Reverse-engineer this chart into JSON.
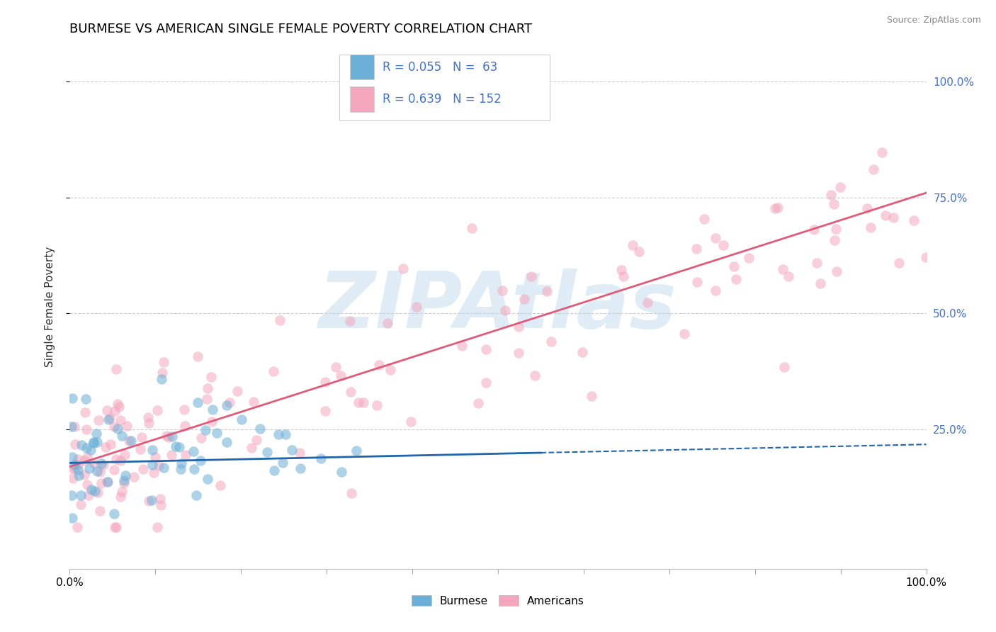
{
  "title": "BURMESE VS AMERICAN SINGLE FEMALE POVERTY CORRELATION CHART",
  "source_text": "Source: ZipAtlas.com",
  "ylabel": "Single Female Poverty",
  "legend_label1": "Burmese",
  "legend_label2": "Americans",
  "R1": 0.055,
  "N1": 63,
  "R2": 0.639,
  "N2": 152,
  "blue_color": "#6baed6",
  "pink_color": "#f4a6be",
  "blue_line_color": "#2166ac",
  "pink_line_color": "#e05a7a",
  "title_color": "#000000",
  "source_color": "#888888",
  "watermark_text": "ZIPAtlas",
  "watermark_color": "#b8d4ea",
  "background_color": "#ffffff",
  "grid_color": "#cccccc",
  "right_tick_color": "#4472c4",
  "xlim": [
    0.0,
    1.0
  ],
  "ylim": [
    -0.05,
    1.08
  ],
  "y_ticks": [
    0.25,
    0.5,
    0.75,
    1.0
  ],
  "y_tick_labels": [
    "25.0%",
    "50.0%",
    "75.0%",
    "100.0%"
  ],
  "blue_line_solid_end": 0.55,
  "blue_line_start_y": 0.178,
  "blue_line_end_y": 0.218,
  "pink_line_start_y": 0.17,
  "pink_line_end_y": 0.76
}
